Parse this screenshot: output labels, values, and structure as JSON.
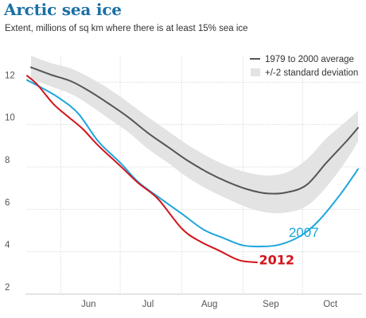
{
  "chart_data": {
    "type": "line",
    "title": "Arctic sea ice",
    "subtitle": "Extent, millions of sq km where there is at least 15% sea ice",
    "xlabel": "",
    "ylabel": "",
    "ylim": [
      2,
      14
    ],
    "xlim": [
      "May 15",
      "Oct 31"
    ],
    "yticks": [
      2,
      4,
      6,
      8,
      10,
      12
    ],
    "xticks": [
      {
        "label": "Jun",
        "x": "Jun 15"
      },
      {
        "label": "Jul",
        "x": "Jul 15"
      },
      {
        "label": "Aug",
        "x": "Aug 15"
      },
      {
        "label": "Sep",
        "x": "Sep 15"
      },
      {
        "label": "Oct",
        "x": "Oct 15"
      }
    ],
    "grid": true,
    "legend_position": "top-right",
    "legend": [
      {
        "label": "1979 to 2000 average",
        "kind": "line"
      },
      {
        "label": "+/-2 standard deviation",
        "kind": "band"
      }
    ],
    "series": [
      {
        "name": "1979 to 2000 average",
        "color": "#555555",
        "x": [
          "May 17",
          "May 27",
          "Jun 6",
          "Jun 15",
          "Jun 25",
          "Jul 5",
          "Jul 15",
          "Jul 25",
          "Aug 4",
          "Aug 14",
          "Aug 24",
          "Sep 3",
          "Sep 13",
          "Sep 23",
          "Oct 3",
          "Oct 13",
          "Oct 23",
          "Oct 29"
        ],
        "values": [
          12.7,
          12.35,
          12.05,
          11.6,
          11.0,
          10.35,
          9.6,
          8.95,
          8.3,
          7.75,
          7.3,
          6.95,
          6.75,
          6.8,
          7.15,
          8.2,
          9.2,
          9.85
        ]
      },
      {
        "name": "+/-2 standard deviation",
        "kind": "band",
        "color": "#e3e3e3",
        "x": [
          "May 17",
          "May 27",
          "Jun 6",
          "Jun 15",
          "Jun 25",
          "Jul 5",
          "Jul 15",
          "Jul 25",
          "Aug 4",
          "Aug 14",
          "Aug 24",
          "Sep 3",
          "Sep 13",
          "Sep 23",
          "Oct 3",
          "Oct 13",
          "Oct 23",
          "Oct 29"
        ],
        "upper": [
          13.25,
          12.9,
          12.65,
          12.25,
          11.7,
          11.05,
          10.35,
          9.7,
          9.05,
          8.5,
          8.05,
          7.75,
          7.6,
          7.75,
          8.35,
          9.35,
          10.15,
          10.65
        ],
        "lower": [
          12.15,
          11.8,
          11.45,
          10.95,
          10.3,
          9.65,
          8.85,
          8.2,
          7.5,
          6.95,
          6.5,
          6.1,
          5.85,
          5.85,
          6.15,
          7.05,
          8.3,
          9.2
        ]
      },
      {
        "name": "2007",
        "color": "#1ea6db",
        "x": [
          "May 15",
          "May 23",
          "Jun 1",
          "Jun 10",
          "Jun 20",
          "Jul 1",
          "Jul 10",
          "Jul 20",
          "Aug 1",
          "Aug 12",
          "Aug 22",
          "Sep 1",
          "Sep 11",
          "Sep 20",
          "Sep 30",
          "Oct 9",
          "Oct 20",
          "Oct 29"
        ],
        "values": [
          12.1,
          11.7,
          11.2,
          10.5,
          9.2,
          8.2,
          7.3,
          6.6,
          5.8,
          5.05,
          4.65,
          4.3,
          4.25,
          4.35,
          4.75,
          5.45,
          6.7,
          7.9
        ]
      },
      {
        "name": "2012",
        "color": "#d2131a",
        "x": [
          "May 15",
          "May 20",
          "May 28",
          "Jun 3",
          "Jun 12",
          "Jun 20",
          "Jul 1",
          "Jul 10",
          "Jul 20",
          "Aug 1",
          "Aug 10",
          "Aug 20",
          "Aug 30",
          "Sep 8"
        ],
        "values": [
          12.3,
          11.9,
          11.0,
          10.5,
          9.8,
          9.0,
          8.05,
          7.25,
          6.5,
          5.1,
          4.5,
          4.05,
          3.6,
          3.5
        ]
      }
    ],
    "annotations": [
      {
        "text": "2012",
        "color": "#d2131a",
        "x": "Sep 9",
        "y": 3.4
      },
      {
        "text": "2007",
        "color": "#1ea6db",
        "x": "Sep 24",
        "y": 4.7
      }
    ]
  }
}
